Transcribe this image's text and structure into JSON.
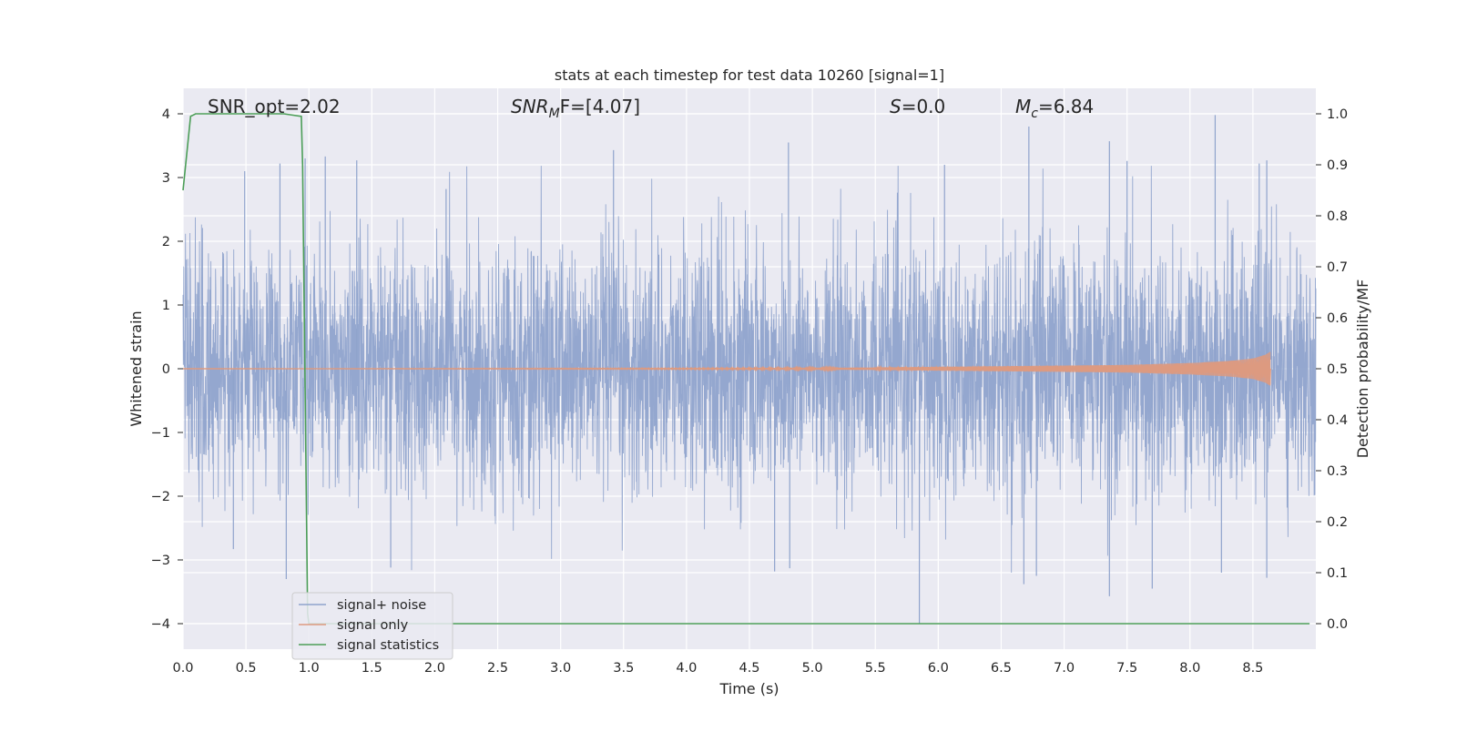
{
  "chart_data": {
    "type": "line",
    "title": "stats at each timestep for test data 10260 [signal=1]",
    "xlabel": "Time (s)",
    "ylabel": "Whitened strain",
    "y2label": "Detection probability/MF",
    "xlim": [
      0.0,
      9.0
    ],
    "ylim": [
      -4.4,
      4.4
    ],
    "y2lim": [
      -0.05,
      1.05
    ],
    "x_ticks": [
      0.0,
      0.5,
      1.0,
      1.5,
      2.0,
      2.5,
      3.0,
      3.5,
      4.0,
      4.5,
      5.0,
      5.5,
      6.0,
      6.5,
      7.0,
      7.5,
      8.0,
      8.5
    ],
    "x_tick_labels": [
      "0.0",
      "0.5",
      "1.0",
      "1.5",
      "2.0",
      "2.5",
      "3.0",
      "3.5",
      "4.0",
      "4.5",
      "5.0",
      "5.5",
      "6.0",
      "6.5",
      "7.0",
      "7.5",
      "8.0",
      "8.5"
    ],
    "y_ticks": [
      4,
      3,
      2,
      1,
      0,
      -1,
      -2,
      -3,
      -4
    ],
    "y_tick_labels": [
      "4",
      "3",
      "2",
      "1",
      "0",
      "−1",
      "−2",
      "−3",
      "−4"
    ],
    "y2_ticks": [
      1.0,
      0.9,
      0.8,
      0.7,
      0.6,
      0.5,
      0.4,
      0.3,
      0.2,
      0.1,
      0.0
    ],
    "y2_tick_labels": [
      "1.0",
      "0.9",
      "0.8",
      "0.7",
      "0.6",
      "0.5",
      "0.4",
      "0.3",
      "0.2",
      "0.1",
      "0.0"
    ],
    "grid": true,
    "annotations": {
      "snr_opt": "SNR_opt=2.02",
      "snr_mf_main": "SNR",
      "snr_mf_sub": "M",
      "snr_mf_rest": "F=[4.07]",
      "s_main": "S",
      "s_rest": "=0.0",
      "mc_main": "M",
      "mc_sub": "c",
      "mc_rest": "=6.84"
    },
    "legend": {
      "placement": "lower-left",
      "entries": [
        "signal+ noise",
        "signal only",
        "signal statistics"
      ]
    },
    "series": [
      {
        "name": "signal+ noise",
        "axis": "left",
        "color": "#8fa3cc",
        "description_values": {
          "noise_std": 0.95,
          "peak_max": 3.98,
          "peak_min": -4.0
        },
        "spikes": [
          [
            0.49,
            3.1
          ],
          [
            0.77,
            3.22
          ],
          [
            0.97,
            3.3
          ],
          [
            1.13,
            3.33
          ],
          [
            1.38,
            3.27
          ],
          [
            2.09,
            2.82
          ],
          [
            3.42,
            3.43
          ],
          [
            4.81,
            3.55
          ],
          [
            6.05,
            3.2
          ],
          [
            6.72,
            3.8
          ],
          [
            7.36,
            3.57
          ],
          [
            7.5,
            3.26
          ],
          [
            8.2,
            3.98
          ],
          [
            8.55,
            3.22
          ],
          [
            8.61,
            3.27
          ],
          [
            0.4,
            -2.83
          ],
          [
            0.82,
            -3.3
          ],
          [
            1.65,
            -3.12
          ],
          [
            4.7,
            -3.18
          ],
          [
            4.82,
            -3.13
          ],
          [
            5.85,
            -4.0
          ],
          [
            6.68,
            -3.38
          ],
          [
            6.78,
            -3.25
          ],
          [
            7.36,
            -3.57
          ],
          [
            7.7,
            -3.45
          ],
          [
            8.25,
            -3.2
          ],
          [
            8.61,
            -3.28
          ]
        ]
      },
      {
        "name": "signal only",
        "axis": "left",
        "color": "#dd9a80",
        "x": [
          0.0,
          4.0,
          5.5,
          6.5,
          7.0,
          7.5,
          8.0,
          8.3,
          8.5,
          8.6,
          8.64
        ],
        "amplitude": [
          0.0,
          0.01,
          0.02,
          0.04,
          0.05,
          0.06,
          0.09,
          0.12,
          0.16,
          0.22,
          0.27
        ]
      },
      {
        "name": "signal statistics",
        "axis": "right",
        "color": "#4c9e58",
        "x": [
          0.0,
          0.06,
          0.1,
          0.2,
          0.4,
          0.6,
          0.8,
          0.94,
          0.95,
          0.99,
          1.0,
          8.95
        ],
        "values": [
          0.85,
          0.995,
          1.0,
          1.0,
          1.0,
          1.0,
          1.0,
          0.995,
          0.9,
          0.02,
          0.0,
          0.0
        ]
      }
    ]
  }
}
